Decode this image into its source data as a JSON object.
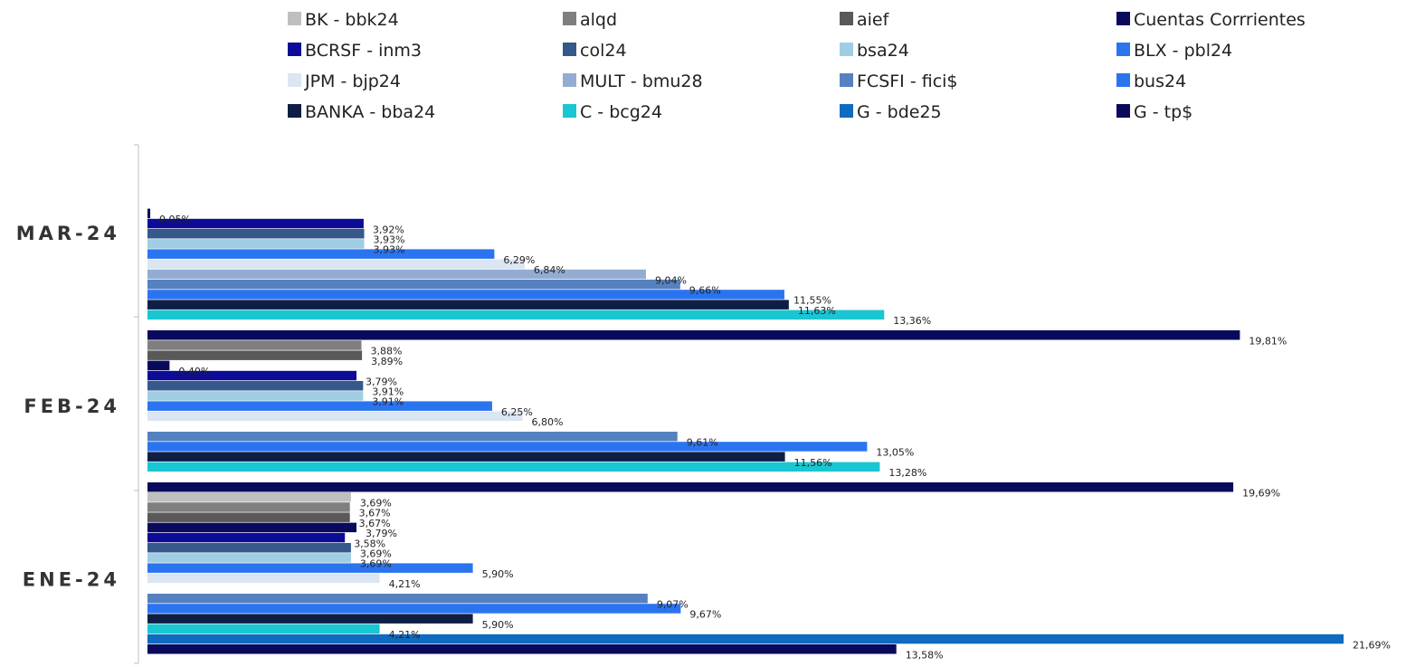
{
  "chart_data": {
    "type": "bar",
    "orientation": "horizontal",
    "title": "",
    "xlabel": "",
    "ylabel": "",
    "xlim": [
      0,
      22
    ],
    "grid": false,
    "legend_position": "top",
    "categories": [
      "MAR-24",
      "FEB-24",
      "ENE-24"
    ],
    "series": [
      {
        "name": "BK - bbk24",
        "color": "#bfbfbf",
        "values": [
          null,
          null,
          3.69
        ],
        "labels": [
          null,
          null,
          "3,69%"
        ]
      },
      {
        "name": "alqd",
        "color": "#7f7f7f",
        "values": [
          null,
          3.88,
          3.67
        ],
        "labels": [
          null,
          "3,88%",
          "3,67%"
        ]
      },
      {
        "name": "aief",
        "color": "#595959",
        "values": [
          null,
          3.89,
          3.67
        ],
        "labels": [
          null,
          "3,89%",
          "3,67%"
        ]
      },
      {
        "name": "Cuentas Corrrientes",
        "color": "#0a0a5c",
        "values": [
          0.05,
          0.4,
          3.79
        ],
        "labels": [
          "0,05%",
          "0,40%",
          "3,79%"
        ]
      },
      {
        "name": "BCRSF - inm3",
        "color": "#0c0c96",
        "values": [
          3.92,
          3.79,
          3.58
        ],
        "labels": [
          "3,92%",
          "3,79%",
          "3,58%"
        ]
      },
      {
        "name": "col24",
        "color": "#34598a",
        "values": [
          3.93,
          3.91,
          3.69
        ],
        "labels": [
          "3,93%",
          "3,91%",
          "3,69%"
        ]
      },
      {
        "name": "bsa24",
        "color": "#9fcde4",
        "values": [
          3.93,
          3.91,
          3.69
        ],
        "labels": [
          "3,93%",
          "3,91%",
          "3,69%"
        ]
      },
      {
        "name": "BLX - pbl24",
        "color": "#2b74f0",
        "values": [
          6.29,
          6.25,
          5.9
        ],
        "labels": [
          "6,29%",
          "6,25%",
          "5,90%"
        ]
      },
      {
        "name": "JPM - bjp24",
        "color": "#dce5f2",
        "values": [
          6.84,
          6.8,
          4.21
        ],
        "labels": [
          "6,84%",
          "6,80%",
          "4,21%"
        ]
      },
      {
        "name": "MULT - bmu28",
        "color": "#93add2",
        "values": [
          9.04,
          null,
          null
        ],
        "labels": [
          "9,04%",
          null,
          null
        ]
      },
      {
        "name": "FCSFI - fici$",
        "color": "#5581c0",
        "values": [
          9.66,
          9.61,
          9.07
        ],
        "labels": [
          "9,66%",
          "9,61%",
          "9,07%"
        ]
      },
      {
        "name": "bus24",
        "color": "#2b74f0",
        "values": [
          11.55,
          13.05,
          9.67
        ],
        "labels": [
          "11,55%",
          "13,05%",
          "9,67%"
        ]
      },
      {
        "name": "BANKA - bba24",
        "color": "#0f1e45",
        "values": [
          11.63,
          11.56,
          5.9
        ],
        "labels": [
          "11,63%",
          "11,56%",
          "5,90%"
        ]
      },
      {
        "name": "C - bcg24",
        "color": "#19c6d2",
        "values": [
          13.36,
          13.28,
          4.21
        ],
        "labels": [
          "13,36%",
          "13,28%",
          "4,21%"
        ]
      },
      {
        "name": "G - bde25",
        "color": "#0f6bbf",
        "values": [
          null,
          null,
          21.69
        ],
        "labels": [
          null,
          null,
          "21,69%"
        ]
      },
      {
        "name": "G - tp$",
        "color": "#0a0a5c",
        "values": [
          19.81,
          19.69,
          13.58
        ],
        "labels": [
          "19,81%",
          "19,69%",
          "13,58%"
        ]
      }
    ]
  }
}
